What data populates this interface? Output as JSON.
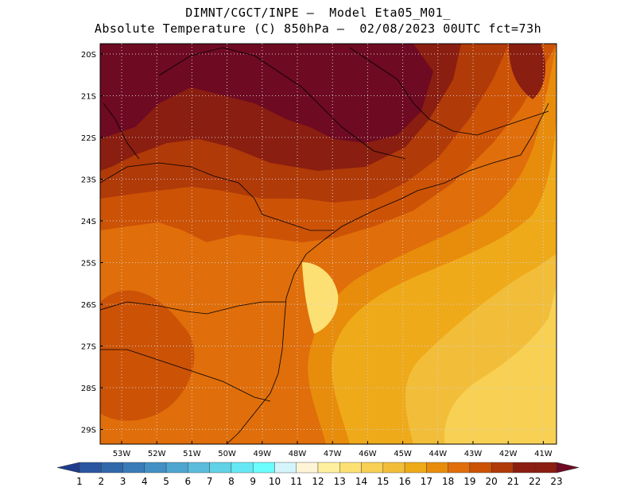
{
  "header": {
    "line1": "DIMNT/CGCT/INPE –  Model Eta05_M01_",
    "line2": "Absolute Temperature (C) 850hPa –  02/08/2023 00UTC fct=73h"
  },
  "map": {
    "lat_labels": [
      "20S",
      "21S",
      "22S",
      "23S",
      "24S",
      "25S",
      "26S",
      "27S",
      "28S",
      "29S"
    ],
    "lon_labels": [
      "53W",
      "52W",
      "51W",
      "50W",
      "49W",
      "48W",
      "47W",
      "46W",
      "45W",
      "44W",
      "43W",
      "42W",
      "41W"
    ],
    "lat_range": [
      -19.5,
      -29.4
    ],
    "lon_range": [
      -53.7,
      -40.5
    ]
  },
  "colorbar": {
    "labels": [
      "1",
      "2",
      "3",
      "4",
      "5",
      "6",
      "7",
      "8",
      "9",
      "10",
      "11",
      "12",
      "13",
      "14",
      "15",
      "16",
      "17",
      "18",
      "19",
      "20",
      "21",
      "22",
      "23"
    ],
    "colors": [
      "#1f3c8c",
      "#2a55a0",
      "#3068aa",
      "#3a7cb8",
      "#4290c4",
      "#4ea6d0",
      "#5cbcdc",
      "#62d2e6",
      "#66e8f4",
      "#6cfcfc",
      "#d4f6fb",
      "#fff4d6",
      "#fff0a0",
      "#fde074",
      "#f8d054",
      "#f2be3a",
      "#efaa1a",
      "#e88c0c",
      "#e06e0a",
      "#cc5206",
      "#b03a08",
      "#8a1e10",
      "#6e0a22"
    ]
  },
  "colors": {
    "t23": "#6e0a22",
    "t22": "#8a1e10",
    "t21": "#b03a08",
    "t20": "#cc5206",
    "t19": "#e06e0a",
    "t18": "#e88c0c",
    "t17": "#efaa1a",
    "t16": "#f2be3a",
    "t15": "#f8d054",
    "t14": "#fde074",
    "t13": "#fff0a0",
    "t12": "#fff4d6"
  }
}
